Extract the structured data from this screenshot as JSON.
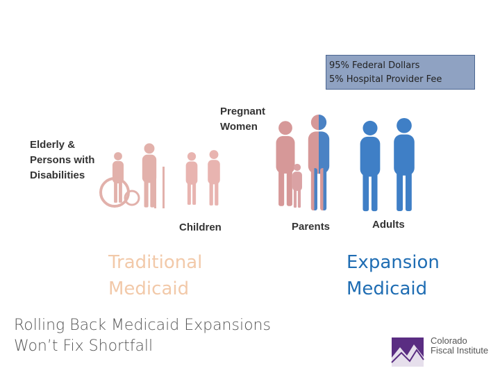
{
  "funding_box": {
    "lines": [
      "95% Federal Dollars",
      "5% Hospital Provider Fee"
    ]
  },
  "groups": {
    "elderly": [
      "Elderly &",
      "Persons with",
      "Disabilities"
    ],
    "pregnant": [
      "Pregnant",
      "Women"
    ],
    "children": "Children",
    "parents": "Parents",
    "adults": "Adults"
  },
  "programs": {
    "traditional": [
      "Traditional",
      "Medicaid"
    ],
    "expansion": [
      "Expansion",
      "Medicaid"
    ]
  },
  "title": [
    "Rolling Back Medicaid Expansions",
    "Won’t Fix Shortfall"
  ],
  "logo": [
    "Colorado",
    "Fiscal Institute"
  ]
}
